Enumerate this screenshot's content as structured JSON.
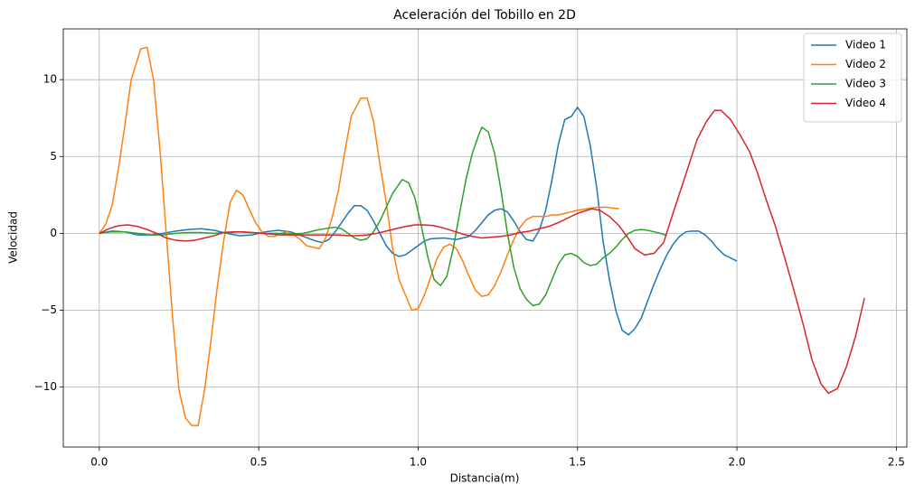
{
  "chart_data": {
    "type": "line",
    "title": "Aceleración del Tobillo en 2D",
    "x_label": "Distancia(m)",
    "y_label": "Velocidad",
    "xlim": [
      -0.113,
      2.533
    ],
    "ylim": [
      -13.9,
      13.3
    ],
    "xticks": [
      {
        "value": 0,
        "label": "0.0"
      },
      0.5,
      {
        "value": 1,
        "label": "1.0"
      },
      1.5,
      {
        "value": 2,
        "label": "2.0"
      },
      2.5
    ],
    "yticks": [
      {
        "value": -10,
        "label": "−10"
      },
      {
        "value": -5,
        "label": "−5"
      },
      0,
      5,
      10
    ],
    "grid": true,
    "legend": "upper-right",
    "series": [
      {
        "name": "Video 1",
        "color": "#1f77b4",
        "x": [
          0,
          0.04,
          0.08,
          0.12,
          0.16,
          0.2,
          0.24,
          0.28,
          0.32,
          0.36,
          0.4,
          0.44,
          0.48,
          0.52,
          0.56,
          0.6,
          0.64,
          0.68,
          0.7,
          0.72,
          0.74,
          0.76,
          0.78,
          0.8,
          0.82,
          0.84,
          0.86,
          0.88,
          0.9,
          0.92,
          0.94,
          0.96,
          0.98,
          1.0,
          1.02,
          1.04,
          1.08,
          1.12,
          1.16,
          1.18,
          1.2,
          1.22,
          1.24,
          1.26,
          1.28,
          1.3,
          1.32,
          1.34,
          1.36,
          1.38,
          1.4,
          1.42,
          1.44,
          1.46,
          1.48,
          1.5,
          1.52,
          1.54,
          1.56,
          1.58,
          1.6,
          1.62,
          1.64,
          1.66,
          1.68,
          1.7,
          1.72,
          1.74,
          1.76,
          1.78,
          1.8,
          1.82,
          1.84,
          1.86,
          1.88,
          1.9,
          1.92,
          1.94,
          1.96,
          1.98,
          2.0
        ],
        "values": [
          0,
          0.15,
          0.1,
          -0.1,
          -0.1,
          0,
          0.15,
          0.25,
          0.3,
          0.2,
          0,
          -0.15,
          -0.1,
          0.1,
          0.2,
          0.1,
          -0.2,
          -0.5,
          -0.6,
          -0.4,
          0.1,
          0.7,
          1.3,
          1.8,
          1.8,
          1.5,
          0.8,
          0,
          -0.8,
          -1.3,
          -1.5,
          -1.4,
          -1.1,
          -0.8,
          -0.5,
          -0.35,
          -0.3,
          -0.4,
          -0.2,
          0.2,
          0.7,
          1.2,
          1.5,
          1.6,
          1.4,
          0.8,
          0.1,
          -0.4,
          -0.5,
          0.2,
          1.5,
          3.5,
          5.8,
          7.4,
          7.6,
          8.2,
          7.6,
          5.7,
          3,
          -0.5,
          -3,
          -5,
          -6.3,
          -6.6,
          -6.2,
          -5.5,
          -4.4,
          -3.3,
          -2.3,
          -1.4,
          -0.7,
          -0.2,
          0.1,
          0.15,
          0.15,
          -0.1,
          -0.5,
          -1,
          -1.4,
          -1.6,
          -1.8
        ]
      },
      {
        "name": "Video 2",
        "color": "#ff7f0e",
        "x": [
          0,
          0.02,
          0.04,
          0.06,
          0.08,
          0.1,
          0.13,
          0.15,
          0.17,
          0.19,
          0.21,
          0.23,
          0.25,
          0.27,
          0.29,
          0.31,
          0.33,
          0.35,
          0.37,
          0.39,
          0.41,
          0.43,
          0.45,
          0.47,
          0.49,
          0.51,
          0.53,
          0.55,
          0.57,
          0.59,
          0.61,
          0.63,
          0.65,
          0.67,
          0.69,
          0.71,
          0.73,
          0.75,
          0.77,
          0.79,
          0.82,
          0.84,
          0.86,
          0.88,
          0.9,
          0.92,
          0.94,
          0.96,
          0.98,
          1.0,
          1.02,
          1.04,
          1.06,
          1.08,
          1.1,
          1.12,
          1.14,
          1.16,
          1.18,
          1.2,
          1.22,
          1.24,
          1.26,
          1.28,
          1.3,
          1.32,
          1.34,
          1.36,
          1.38,
          1.4,
          1.42,
          1.44,
          1.46,
          1.48,
          1.5,
          1.53,
          1.56,
          1.59,
          1.63
        ],
        "values": [
          0,
          0.6,
          1.8,
          4.2,
          7,
          10,
          12,
          12.1,
          10,
          5.5,
          0,
          -5.5,
          -10.2,
          -12,
          -12.5,
          -12.5,
          -10.2,
          -7,
          -3.5,
          -0.5,
          2,
          2.8,
          2.5,
          1.6,
          0.7,
          0.1,
          -0.2,
          -0.2,
          0,
          0.1,
          -0.1,
          -0.4,
          -0.8,
          -0.9,
          -1,
          -0.3,
          1,
          2.8,
          5.3,
          7.6,
          8.8,
          8.8,
          7.3,
          4.5,
          2,
          -1,
          -3,
          -4,
          -5,
          -4.9,
          -4,
          -2.8,
          -1.6,
          -0.9,
          -0.7,
          -1,
          -1.8,
          -2.8,
          -3.7,
          -4.1,
          -4,
          -3.4,
          -2.5,
          -1.4,
          -0.4,
          0.4,
          0.9,
          1.1,
          1.1,
          1.1,
          1.2,
          1.2,
          1.3,
          1.4,
          1.5,
          1.6,
          1.7,
          1.7,
          1.6
        ]
      },
      {
        "name": "Video 3",
        "color": "#2ca02c",
        "x": [
          0,
          0.04,
          0.08,
          0.12,
          0.16,
          0.2,
          0.24,
          0.28,
          0.32,
          0.36,
          0.4,
          0.44,
          0.48,
          0.52,
          0.56,
          0.6,
          0.64,
          0.68,
          0.72,
          0.74,
          0.76,
          0.78,
          0.8,
          0.82,
          0.84,
          0.86,
          0.88,
          0.9,
          0.92,
          0.94,
          0.95,
          0.97,
          0.99,
          1.01,
          1.03,
          1.05,
          1.07,
          1.09,
          1.11,
          1.13,
          1.15,
          1.17,
          1.19,
          1.2,
          1.22,
          1.24,
          1.26,
          1.28,
          1.3,
          1.32,
          1.34,
          1.36,
          1.38,
          1.4,
          1.42,
          1.44,
          1.46,
          1.48,
          1.5,
          1.52,
          1.54,
          1.56,
          1.58,
          1.6,
          1.62,
          1.64,
          1.66,
          1.68,
          1.7,
          1.72,
          1.74,
          1.76,
          1.78
        ],
        "values": [
          0,
          0.1,
          0.1,
          0,
          -0.1,
          -0.1,
          0,
          0.05,
          0.05,
          0,
          0.05,
          0.1,
          0.05,
          0,
          0,
          -0.05,
          0,
          0.2,
          0.35,
          0.4,
          0.3,
          0,
          -0.3,
          -0.45,
          -0.35,
          0.1,
          0.8,
          1.7,
          2.6,
          3.2,
          3.5,
          3.3,
          2.3,
          0.5,
          -1.5,
          -3,
          -3.4,
          -2.8,
          -1,
          1.3,
          3.5,
          5.2,
          6.4,
          6.9,
          6.6,
          5.2,
          2.8,
          0,
          -2.2,
          -3.6,
          -4.3,
          -4.7,
          -4.6,
          -4,
          -3,
          -2,
          -1.4,
          -1.3,
          -1.5,
          -1.9,
          -2.1,
          -2,
          -1.6,
          -1.3,
          -0.9,
          -0.4,
          0,
          0.2,
          0.25,
          0.2,
          0.1,
          0,
          -0.15
        ]
      },
      {
        "name": "Video 4",
        "color": "#d62728",
        "x": [
          0,
          0.03,
          0.06,
          0.09,
          0.12,
          0.15,
          0.18,
          0.21,
          0.24,
          0.27,
          0.3,
          0.33,
          0.36,
          0.39,
          0.42,
          0.45,
          0.48,
          0.51,
          0.54,
          0.57,
          0.6,
          0.63,
          0.66,
          0.69,
          0.72,
          0.75,
          0.78,
          0.81,
          0.84,
          0.87,
          0.9,
          0.93,
          0.96,
          0.99,
          1.02,
          1.05,
          1.08,
          1.11,
          1.14,
          1.17,
          1.2,
          1.23,
          1.26,
          1.29,
          1.32,
          1.35,
          1.38,
          1.41,
          1.44,
          1.47,
          1.5,
          1.545,
          1.57,
          1.6,
          1.63,
          1.655,
          1.68,
          1.71,
          1.74,
          1.77,
          1.79,
          1.82,
          1.85,
          1.875,
          1.905,
          1.93,
          1.95,
          1.98,
          2.01,
          2.04,
          2.065,
          2.09,
          2.12,
          2.15,
          2.18,
          2.21,
          2.235,
          2.264,
          2.287,
          2.315,
          2.343,
          2.372,
          2.4
        ],
        "values": [
          0,
          0.3,
          0.5,
          0.55,
          0.45,
          0.25,
          0,
          -0.3,
          -0.45,
          -0.5,
          -0.45,
          -0.3,
          -0.15,
          0.05,
          0.1,
          0.1,
          0.05,
          0,
          -0.05,
          -0.1,
          -0.1,
          -0.1,
          -0.1,
          -0.1,
          -0.1,
          -0.1,
          -0.15,
          -0.15,
          -0.1,
          0,
          0.15,
          0.3,
          0.45,
          0.55,
          0.55,
          0.5,
          0.35,
          0.15,
          -0.05,
          -0.2,
          -0.3,
          -0.25,
          -0.2,
          -0.1,
          0.05,
          0.15,
          0.3,
          0.45,
          0.7,
          1,
          1.3,
          1.6,
          1.5,
          1.1,
          0.5,
          -0.2,
          -1,
          -1.4,
          -1.3,
          -0.6,
          0.7,
          2.6,
          4.5,
          6.1,
          7.3,
          8,
          8,
          7.4,
          6.4,
          5.3,
          3.9,
          2.3,
          0.5,
          -1.6,
          -3.8,
          -6.1,
          -8.2,
          -9.8,
          -10.4,
          -10.1,
          -8.7,
          -6.7,
          -4.2
        ]
      }
    ]
  }
}
